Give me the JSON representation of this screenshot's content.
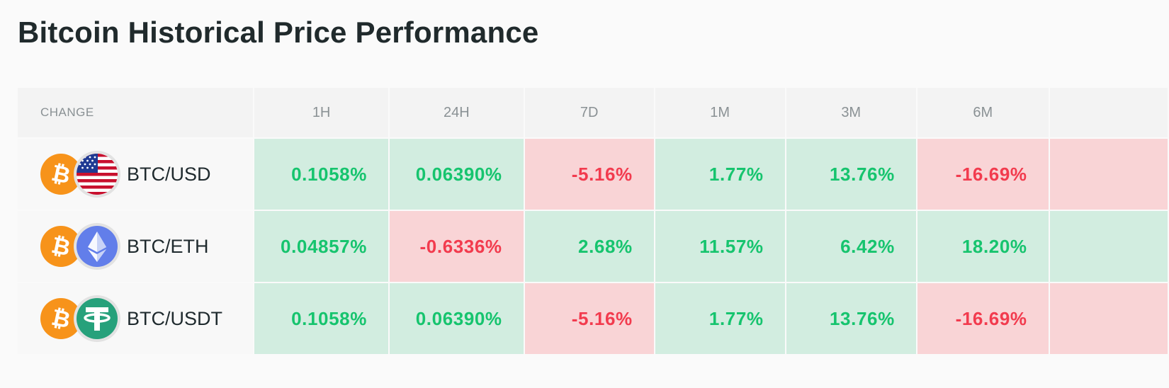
{
  "title": "Bitcoin Historical Price Performance",
  "colors": {
    "positive": "#16c46e",
    "positive_bg": "#d2ede0",
    "negative": "#f23b4e",
    "negative_bg": "#f9d4d6",
    "btc": "#f7931a",
    "eth": "#627eea",
    "usdt": "#26a17b"
  },
  "table": {
    "headers": [
      "CHANGE",
      "1H",
      "24H",
      "7D",
      "1M",
      "3M",
      "6M"
    ],
    "rows": [
      {
        "pair": "BTC/USD",
        "base_icon": "bitcoin-icon",
        "quote_icon": "us-flag-icon",
        "values": [
          "0.1058%",
          "0.06390%",
          "-5.16%",
          "1.77%",
          "13.76%",
          "-16.69%"
        ]
      },
      {
        "pair": "BTC/ETH",
        "base_icon": "bitcoin-icon",
        "quote_icon": "ethereum-icon",
        "values": [
          "0.04857%",
          "-0.6336%",
          "2.68%",
          "11.57%",
          "6.42%",
          "18.20%"
        ]
      },
      {
        "pair": "BTC/USDT",
        "base_icon": "bitcoin-icon",
        "quote_icon": "tether-icon",
        "values": [
          "0.1058%",
          "0.06390%",
          "-5.16%",
          "1.77%",
          "13.76%",
          "-16.69%"
        ]
      }
    ]
  }
}
